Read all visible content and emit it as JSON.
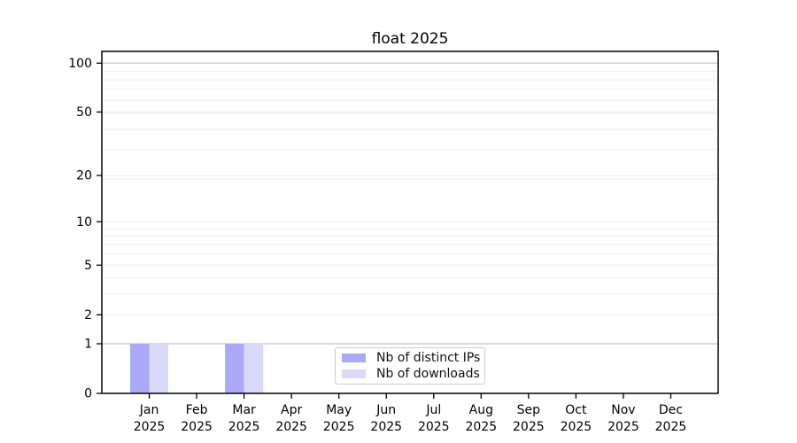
{
  "chart_data": {
    "type": "bar",
    "title": "float 2025",
    "categories": [
      "Jan",
      "Feb",
      "Mar",
      "Apr",
      "May",
      "Jun",
      "Jul",
      "Aug",
      "Sep",
      "Oct",
      "Nov",
      "Dec"
    ],
    "year_label": "2025",
    "series": [
      {
        "name": "Nb of distinct IPs",
        "color": "#a9a9f7",
        "values": [
          1,
          0,
          1,
          0,
          0,
          0,
          0,
          0,
          0,
          0,
          0,
          0
        ]
      },
      {
        "name": "Nb of downloads",
        "color": "#d9d9f9",
        "values": [
          1,
          0,
          1,
          0,
          0,
          0,
          0,
          0,
          0,
          0,
          0,
          0
        ]
      }
    ],
    "xlabel": "",
    "ylabel": "",
    "yscale": "log10(1+v)",
    "ylim": [
      0,
      118
    ],
    "yticks": [
      0,
      1,
      2,
      5,
      10,
      20,
      50,
      100
    ],
    "gridlines": {
      "major_values": [
        1,
        100
      ],
      "minor_values": [
        2,
        3,
        4,
        5,
        6,
        7,
        8,
        9,
        10,
        19,
        20,
        29,
        39,
        49,
        50,
        59,
        69,
        79,
        89
      ]
    },
    "legend": {
      "position": "lower-center"
    },
    "colors": {
      "grid_major": "#c4c4c4",
      "grid_minor": "#ededed",
      "spine": "#000000",
      "text": "#000000"
    }
  }
}
